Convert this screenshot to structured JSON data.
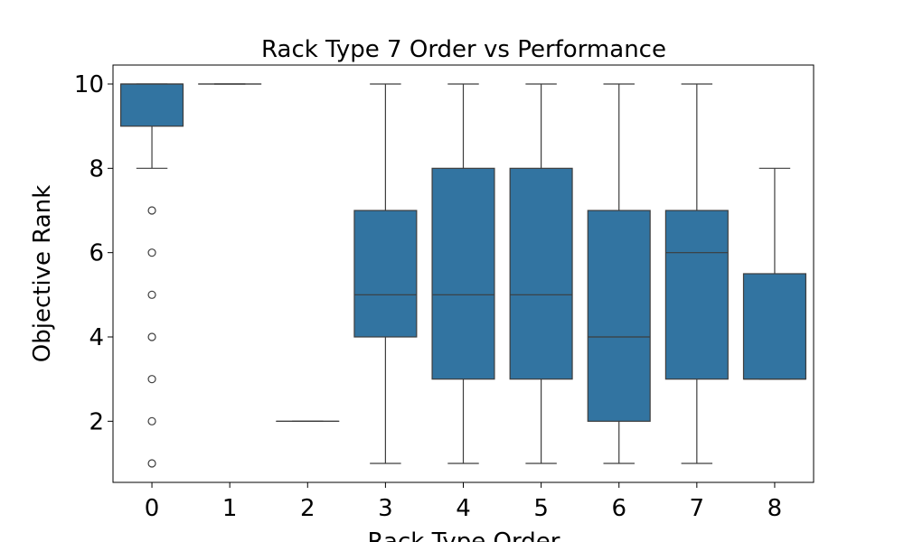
{
  "chart_data": {
    "type": "box",
    "title": "Rack Type 7 Order vs Performance",
    "xlabel": "Rack Type Order",
    "ylabel": "Objective Rank",
    "categories": [
      "0",
      "1",
      "2",
      "3",
      "4",
      "5",
      "6",
      "7",
      "8"
    ],
    "y_ticks": [
      2,
      4,
      6,
      8,
      10
    ],
    "ylim": [
      0.55,
      10.45
    ],
    "grid": false,
    "box_color": "#3274a1",
    "line_color": "#3d3d3d",
    "boxes": [
      {
        "category": "0",
        "whisker_low": 8,
        "q1": 9,
        "median": 10,
        "q3": 10,
        "whisker_high": 10,
        "outliers": [
          7,
          6,
          5,
          4,
          3,
          2,
          1
        ]
      },
      {
        "category": "1",
        "whisker_low": 10,
        "q1": 10,
        "median": 10,
        "q3": 10,
        "whisker_high": 10,
        "outliers": []
      },
      {
        "category": "2",
        "whisker_low": 2,
        "q1": 2,
        "median": 2,
        "q3": 2,
        "whisker_high": 2,
        "outliers": []
      },
      {
        "category": "3",
        "whisker_low": 1,
        "q1": 4,
        "median": 5,
        "q3": 7,
        "whisker_high": 10,
        "outliers": []
      },
      {
        "category": "4",
        "whisker_low": 1,
        "q1": 3,
        "median": 5,
        "q3": 8,
        "whisker_high": 10,
        "outliers": []
      },
      {
        "category": "5",
        "whisker_low": 1,
        "q1": 3,
        "median": 5,
        "q3": 8,
        "whisker_high": 10,
        "outliers": []
      },
      {
        "category": "6",
        "whisker_low": 1,
        "q1": 2,
        "median": 4,
        "q3": 7,
        "whisker_high": 10,
        "outliers": []
      },
      {
        "category": "7",
        "whisker_low": 1,
        "q1": 3,
        "median": 6,
        "q3": 7,
        "whisker_high": 10,
        "outliers": []
      },
      {
        "category": "8",
        "whisker_low": 3,
        "q1": 3,
        "median": 3,
        "q3": 5.5,
        "whisker_high": 8,
        "outliers": []
      }
    ]
  }
}
